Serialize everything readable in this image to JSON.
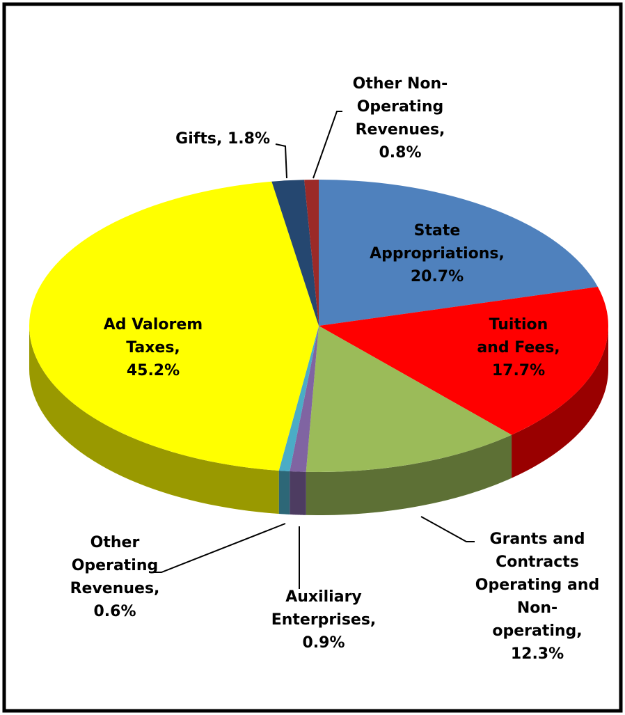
{
  "chart_data": {
    "type": "pie3d",
    "labels": [
      [
        "State",
        "Appropriations,",
        "20.7%"
      ],
      [
        "Tuition",
        "and Fees,",
        "17.7%"
      ],
      [
        "Grants and",
        "Contracts",
        "Operating and",
        "Non-",
        "operating,",
        "12.3%"
      ],
      [
        "Auxiliary",
        "Enterprises,",
        "0.9%"
      ],
      [
        "Other",
        "Operating",
        "Revenues,",
        "0.6%"
      ],
      [
        "Ad Valorem",
        "Taxes,",
        "45.2%"
      ],
      [
        "Gifts, 1.8%"
      ],
      [
        "Other Non-",
        "Operating",
        "Revenues,",
        "0.8%"
      ]
    ],
    "values": [
      20.7,
      17.7,
      12.3,
      0.9,
      0.6,
      45.2,
      1.8,
      0.8
    ],
    "colors": [
      "#4f81bd",
      "#ff0000",
      "#9bbb59",
      "#8064a2",
      "#4bacc6",
      "#ffff00",
      "#254770",
      "#9b2a28"
    ]
  }
}
